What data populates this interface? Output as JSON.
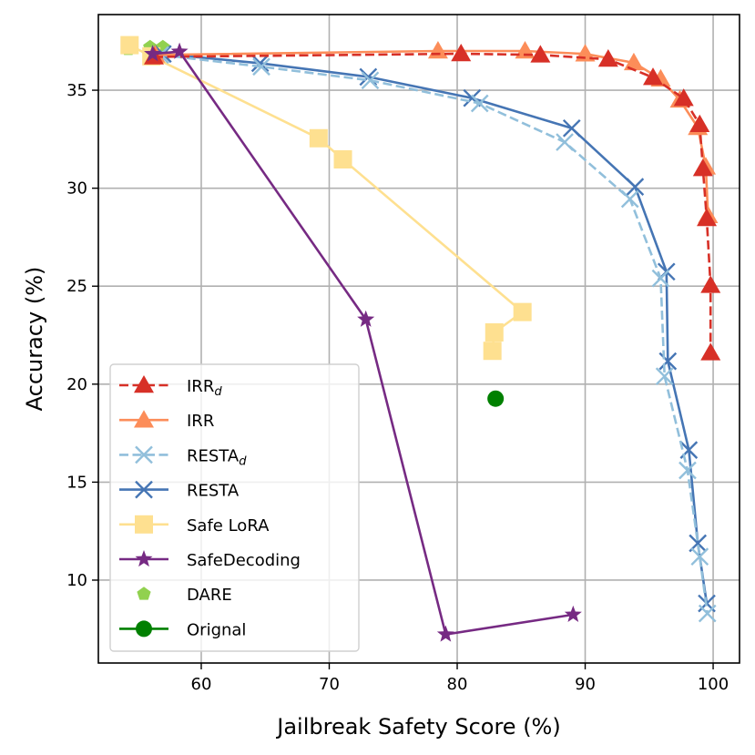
{
  "chart_data": {
    "type": "line",
    "title": "",
    "xlabel": "Jailbreak Safety Score (%)",
    "ylabel": "Accuracy (%)",
    "xlim": [
      51.96,
      102.06
    ],
    "ylim": [
      5.77,
      38.86
    ],
    "xticks": [
      60,
      70,
      80,
      90,
      100
    ],
    "yticks": [
      10,
      15,
      20,
      25,
      30,
      35
    ],
    "grid": true,
    "legend_position": "lower-left",
    "series": [
      {
        "name": "IRR",
        "subscript": "d",
        "color": "#d73027",
        "linestyle": "dashed",
        "marker": "triangle",
        "points": [
          [
            56.3,
            36.7
          ],
          [
            80.3,
            36.86
          ],
          [
            86.5,
            36.8
          ],
          [
            91.8,
            36.58
          ],
          [
            95.3,
            35.65
          ],
          [
            97.7,
            34.58
          ],
          [
            98.95,
            33.25
          ],
          [
            99.2,
            31.0
          ],
          [
            99.5,
            28.45
          ],
          [
            99.8,
            25.04
          ],
          [
            99.8,
            21.6
          ]
        ]
      },
      {
        "name": "IRR",
        "subscript": "",
        "color": "#fc8d59",
        "linestyle": "solid",
        "marker": "triangle",
        "points": [
          [
            56.4,
            36.8
          ],
          [
            78.5,
            37.0
          ],
          [
            85.3,
            37.0
          ],
          [
            90.0,
            36.85
          ],
          [
            93.8,
            36.4
          ],
          [
            95.9,
            35.57
          ],
          [
            97.4,
            34.5
          ],
          [
            98.8,
            33.1
          ],
          [
            99.43,
            31.08
          ],
          [
            99.6,
            28.6
          ]
        ]
      },
      {
        "name": "RESTA",
        "subscript": "d",
        "color": "#91bfdb",
        "linestyle": "dashed",
        "marker": "x",
        "points": [
          [
            56.8,
            36.8
          ],
          [
            64.7,
            36.2
          ],
          [
            73.2,
            35.5
          ],
          [
            81.76,
            34.33
          ],
          [
            88.4,
            32.35
          ],
          [
            93.5,
            29.45
          ],
          [
            95.9,
            25.4
          ],
          [
            96.2,
            20.4
          ],
          [
            98.0,
            15.6
          ],
          [
            98.95,
            11.2
          ],
          [
            99.55,
            8.3
          ]
        ]
      },
      {
        "name": "RESTA",
        "subscript": "",
        "color": "#4575b4",
        "linestyle": "solid",
        "marker": "x",
        "points": [
          [
            57.0,
            36.85
          ],
          [
            64.6,
            36.38
          ],
          [
            73.05,
            35.68
          ],
          [
            81.16,
            34.6
          ],
          [
            88.95,
            33.06
          ],
          [
            93.9,
            30.07
          ],
          [
            96.35,
            25.74
          ],
          [
            96.46,
            21.17
          ],
          [
            98.1,
            16.64
          ],
          [
            98.8,
            11.88
          ],
          [
            99.5,
            8.81
          ]
        ]
      },
      {
        "name": "Safe LoRA",
        "subscript": "",
        "color": "#fee090",
        "linestyle": "solid",
        "marker": "square",
        "points": [
          [
            54.4,
            37.3
          ],
          [
            56.1,
            36.73
          ],
          [
            69.17,
            32.55
          ],
          [
            71.07,
            31.47
          ],
          [
            85.1,
            23.68
          ],
          [
            82.9,
            22.64
          ],
          [
            82.75,
            21.7
          ]
        ]
      },
      {
        "name": "SafeDecoding",
        "subscript": "",
        "color": "#762a83",
        "linestyle": "solid",
        "marker": "star",
        "points": [
          [
            56.2,
            36.85
          ],
          [
            58.3,
            36.97
          ],
          [
            72.86,
            23.3
          ],
          [
            79.1,
            7.23
          ],
          [
            89.06,
            8.24
          ]
        ]
      },
      {
        "name": "DARE",
        "subscript": "",
        "color": "#91d14f",
        "linestyle": "none",
        "marker": "pentagon",
        "points": [
          [
            54.3,
            37.1
          ],
          [
            56.0,
            37.2
          ],
          [
            57.0,
            37.2
          ]
        ]
      },
      {
        "name": "Orignal",
        "subscript": "",
        "color": "#008000",
        "linestyle": "solid",
        "marker": "circle",
        "points": [
          [
            83.0,
            19.26
          ]
        ]
      }
    ],
    "legend_order": [
      0,
      1,
      2,
      3,
      4,
      5,
      6,
      7
    ]
  }
}
